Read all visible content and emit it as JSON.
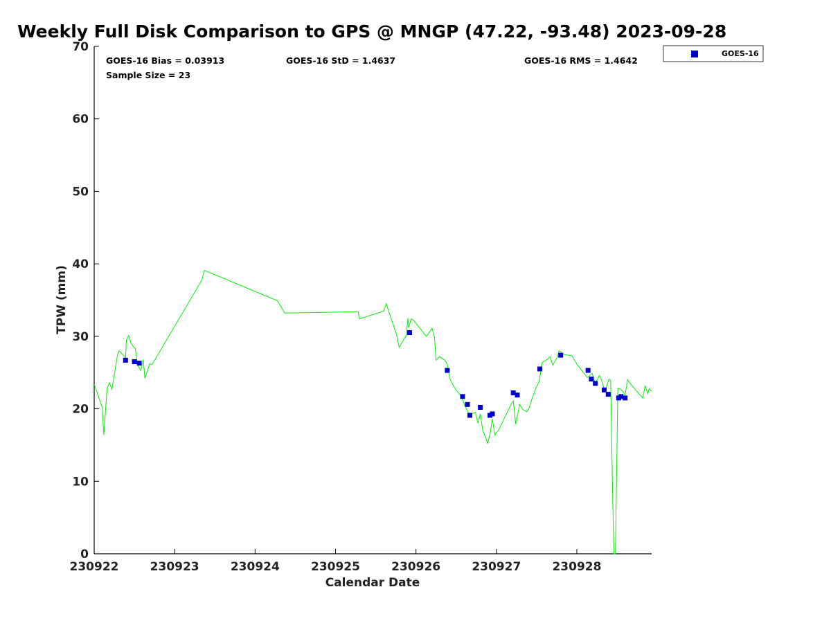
{
  "chart_data": {
    "type": "scatter",
    "title": "Weekly Full Disk Comparison to GPS @ MNGP (47.22, -93.48) 2023-09-28",
    "xlabel": "Calendar Date",
    "ylabel": "TPW (mm)",
    "xlim": [
      "230922",
      "230928.93"
    ],
    "ylim": [
      0,
      70
    ],
    "x_ticks": [
      "230922",
      "230923",
      "230924",
      "230925",
      "230926",
      "230927",
      "230928"
    ],
    "y_ticks": [
      0,
      10,
      20,
      30,
      40,
      50,
      60,
      70
    ],
    "legend_position": "top-right-outside",
    "grid": false,
    "stats": {
      "bias": "GOES-16 Bias = 0.03913",
      "std": "GOES-16 StD = 1.4637",
      "rms": "GOES-16 RMS = 1.4642",
      "sample_size": "Sample Size = 23"
    },
    "series": [
      {
        "name": "GOES-16",
        "kind": "scatter",
        "color": "#0000cc",
        "points": [
          [
            230922.39,
            26.7
          ],
          [
            230922.5,
            26.5
          ],
          [
            230922.56,
            26.3
          ],
          [
            230925.92,
            30.5
          ],
          [
            230926.39,
            25.3
          ],
          [
            230926.58,
            21.7
          ],
          [
            230926.64,
            20.6
          ],
          [
            230926.67,
            19.1
          ],
          [
            230926.8,
            20.2
          ],
          [
            230926.92,
            19.1
          ],
          [
            230926.95,
            19.3
          ],
          [
            230927.21,
            22.2
          ],
          [
            230927.26,
            21.9
          ],
          [
            230927.54,
            25.5
          ],
          [
            230927.8,
            27.4
          ],
          [
            230928.14,
            25.3
          ],
          [
            230928.18,
            24.1
          ],
          [
            230928.23,
            23.5
          ],
          [
            230928.34,
            22.6
          ],
          [
            230928.39,
            22.0
          ],
          [
            230928.52,
            21.5
          ],
          [
            230928.55,
            21.7
          ],
          [
            230928.6,
            21.5
          ]
        ]
      },
      {
        "kind": "line",
        "color": "#00ee00",
        "points": [
          [
            230922.0,
            23.4
          ],
          [
            230922.1,
            20.2
          ],
          [
            230922.12,
            16.4
          ],
          [
            230922.16,
            22.8
          ],
          [
            230922.19,
            23.6
          ],
          [
            230922.22,
            22.7
          ],
          [
            230922.29,
            27.4
          ],
          [
            230922.31,
            28.0
          ],
          [
            230922.37,
            27.3
          ],
          [
            230922.39,
            27.0
          ],
          [
            230922.4,
            29.5
          ],
          [
            230922.43,
            30.1
          ],
          [
            230922.46,
            29.0
          ],
          [
            230922.5,
            28.4
          ],
          [
            230922.51,
            28.4
          ],
          [
            230922.54,
            26.0
          ],
          [
            230922.58,
            25.3
          ],
          [
            230922.61,
            26.8
          ],
          [
            230922.63,
            24.2
          ],
          [
            230922.69,
            26.2
          ],
          [
            230922.72,
            26.1
          ],
          [
            230923.34,
            37.8
          ],
          [
            230923.37,
            39.1
          ],
          [
            230924.28,
            34.9
          ],
          [
            230924.31,
            34.3
          ],
          [
            230924.37,
            33.2
          ],
          [
            230925.28,
            33.4
          ],
          [
            230925.3,
            32.4
          ],
          [
            230925.6,
            33.5
          ],
          [
            230925.63,
            34.5
          ],
          [
            230925.72,
            31.5
          ],
          [
            230925.76,
            30.2
          ],
          [
            230925.79,
            28.5
          ],
          [
            230925.83,
            29.2
          ],
          [
            230925.85,
            29.6
          ],
          [
            230925.88,
            30.1
          ],
          [
            230925.9,
            32.5
          ],
          [
            230925.91,
            31.2
          ],
          [
            230925.94,
            32.4
          ],
          [
            230925.97,
            32.2
          ],
          [
            230926.13,
            30.0
          ],
          [
            230926.2,
            31.1
          ],
          [
            230926.23,
            29.9
          ],
          [
            230926.25,
            26.7
          ],
          [
            230926.29,
            27.2
          ],
          [
            230926.36,
            26.7
          ],
          [
            230926.39,
            26.1
          ],
          [
            230926.42,
            24.2
          ],
          [
            230926.47,
            23.1
          ],
          [
            230926.52,
            22.3
          ],
          [
            230926.57,
            21.6
          ],
          [
            230926.61,
            20.4
          ],
          [
            230926.65,
            19.5
          ],
          [
            230926.69,
            19.3
          ],
          [
            230926.74,
            19.5
          ],
          [
            230926.77,
            18.0
          ],
          [
            230926.8,
            19.3
          ],
          [
            230926.83,
            17.0
          ],
          [
            230926.88,
            15.7
          ],
          [
            230926.89,
            15.2
          ],
          [
            230926.92,
            16.5
          ],
          [
            230926.95,
            18.6
          ],
          [
            230926.98,
            16.4
          ],
          [
            230927.03,
            17.1
          ],
          [
            230927.19,
            20.8
          ],
          [
            230927.21,
            21.1
          ],
          [
            230927.24,
            17.9
          ],
          [
            230927.29,
            20.6
          ],
          [
            230927.33,
            19.9
          ],
          [
            230927.38,
            19.6
          ],
          [
            230927.41,
            20.2
          ],
          [
            230927.44,
            21.3
          ],
          [
            230927.49,
            22.8
          ],
          [
            230927.53,
            23.7
          ],
          [
            230927.57,
            26.4
          ],
          [
            230927.63,
            26.8
          ],
          [
            230927.67,
            27.2
          ],
          [
            230927.7,
            26.0
          ],
          [
            230927.76,
            27.2
          ],
          [
            230927.78,
            28.0
          ],
          [
            230927.84,
            27.5
          ],
          [
            230927.94,
            27.3
          ],
          [
            230928.01,
            26.0
          ],
          [
            230928.09,
            24.9
          ],
          [
            230928.13,
            24.3
          ],
          [
            230928.19,
            24.9
          ],
          [
            230928.23,
            23.5
          ],
          [
            230928.28,
            24.6
          ],
          [
            230928.3,
            24.2
          ],
          [
            230928.35,
            22.4
          ],
          [
            230928.4,
            24.1
          ],
          [
            230928.42,
            23.9
          ],
          [
            230928.44,
            11.0
          ],
          [
            230928.46,
            0.0
          ],
          [
            230928.48,
            0.0
          ],
          [
            230928.51,
            22.8
          ],
          [
            230928.55,
            22.7
          ],
          [
            230928.6,
            21.9
          ],
          [
            230928.63,
            24.0
          ],
          [
            230928.67,
            23.4
          ],
          [
            230928.82,
            21.5
          ],
          [
            230928.85,
            23.2
          ],
          [
            230928.88,
            22.1
          ],
          [
            230928.9,
            22.8
          ],
          [
            230928.93,
            22.4
          ]
        ]
      }
    ]
  }
}
